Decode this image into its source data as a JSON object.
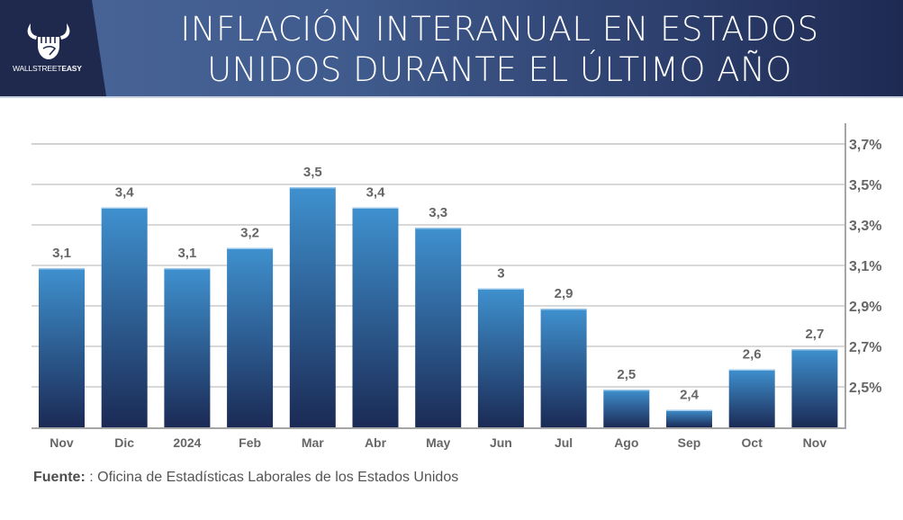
{
  "header": {
    "brand_name_light": "WALLSTREET",
    "brand_name_bold": "EASY",
    "logo_icon": "bull-fist-icon",
    "title_line1": "INFLACIÓN INTERANUAL EN ESTADOS",
    "title_line2": "UNIDOS DURANTE EL ÚLTIMO AÑO"
  },
  "footer": {
    "source_label": "Fuente:",
    "source_text": " : Oficina de Estadísticas Laborales de los Estados Unidos"
  },
  "colors": {
    "header_dark": "#1f284d",
    "header_light": "#4a6597",
    "bar_top": "#3f91cf",
    "bar_bottom": "#1b2a55",
    "label_gray": "#666666",
    "grid": "#b3b3b3"
  },
  "chart_data": {
    "type": "bar",
    "title": "INFLACIÓN INTERANUAL EN ESTADOS UNIDOS DURANTE EL ÚLTIMO AÑO",
    "xlabel": "",
    "ylabel": "",
    "categories": [
      "Nov",
      "Dic",
      "2024",
      "Feb",
      "Mar",
      "Abr",
      "May",
      "Jun",
      "Jul",
      "Ago",
      "Sep",
      "Oct",
      "Nov"
    ],
    "values": [
      3.1,
      3.4,
      3.1,
      3.2,
      3.5,
      3.4,
      3.3,
      3.0,
      2.9,
      2.5,
      2.4,
      2.6,
      2.7
    ],
    "value_labels": [
      "3,1",
      "3,4",
      "3,1",
      "3,2",
      "3,5",
      "3,4",
      "3,3",
      "3",
      "2,9",
      "2,5",
      "2,4",
      "2,6",
      "2,7"
    ],
    "yticks": [
      2.5,
      2.7,
      2.9,
      3.1,
      3.3,
      3.5,
      3.7
    ],
    "ytick_labels": [
      "2,5%",
      "2,7%",
      "2,9%",
      "3,1%",
      "3,3%",
      "3,5%",
      "3,7%"
    ],
    "ylim": [
      2.3,
      3.8
    ],
    "y_axis_side": "right",
    "grid": true,
    "legend": "none"
  }
}
